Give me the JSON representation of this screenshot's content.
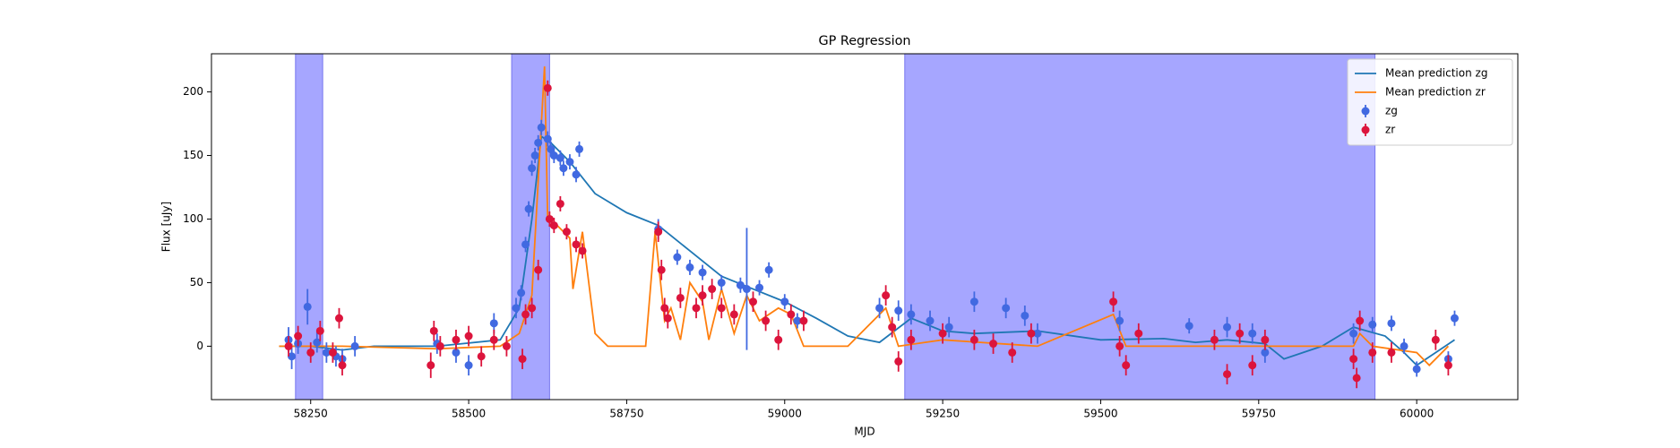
{
  "chart_data": {
    "type": "errorbar_line",
    "title": "GP Regression",
    "xlabel": "MJD",
    "ylabel": "Flux [uJy]",
    "xlim": [
      58093,
      60160
    ],
    "ylim": [
      -42,
      230
    ],
    "xticks": [
      58250,
      58500,
      58750,
      59000,
      59250,
      59500,
      59750,
      60000
    ],
    "yticks": [
      0,
      50,
      100,
      150,
      200
    ],
    "legend": "upper right",
    "span_color": "#a6a6ff",
    "spans": [
      [
        58226,
        58269
      ],
      [
        58568,
        58628
      ],
      [
        59190,
        59934
      ]
    ],
    "series": [
      {
        "name": "Mean prediction zg",
        "kind": "line",
        "color": "#1f77b4",
        "x": [
          58200,
          58250,
          58300,
          58350,
          58450,
          58550,
          58580,
          58600,
          58615,
          58630,
          58660,
          58700,
          58750,
          58800,
          58850,
          58900,
          58950,
          59000,
          59050,
          59100,
          59150,
          59200,
          59250,
          59300,
          59400,
          59500,
          59600,
          59650,
          59700,
          59760,
          59790,
          59850,
          59900,
          59950,
          59980,
          60000,
          60030,
          60060
        ],
        "values": [
          0,
          0,
          -3,
          0,
          0,
          5,
          30,
          100,
          165,
          160,
          145,
          120,
          105,
          95,
          75,
          55,
          45,
          35,
          22,
          8,
          3,
          22,
          12,
          10,
          12,
          5,
          6,
          3,
          5,
          2,
          -10,
          0,
          15,
          8,
          -5,
          -15,
          -5,
          5
        ]
      },
      {
        "name": "Mean prediction zr",
        "kind": "line",
        "color": "#ff7f0e",
        "x": [
          58200,
          58300,
          58450,
          58550,
          58580,
          58600,
          58620,
          58625,
          58640,
          58660,
          58665,
          58680,
          58700,
          58720,
          58780,
          58795,
          58810,
          58820,
          58835,
          58850,
          58870,
          58880,
          58900,
          58920,
          58940,
          58960,
          58990,
          59010,
          59030,
          59100,
          59160,
          59180,
          59250,
          59400,
          59520,
          59540,
          59700,
          59900,
          59910,
          59930,
          60000,
          60020,
          60050
        ],
        "values": [
          0,
          0,
          -2,
          0,
          10,
          40,
          220,
          100,
          95,
          85,
          45,
          90,
          10,
          0,
          0,
          90,
          20,
          30,
          5,
          50,
          35,
          5,
          45,
          10,
          40,
          20,
          30,
          25,
          0,
          0,
          30,
          0,
          5,
          0,
          25,
          0,
          0,
          0,
          10,
          0,
          -5,
          -15,
          0
        ]
      },
      {
        "name": "zg",
        "kind": "errorbar",
        "color": "#4169e1",
        "x": [
          58215,
          58220,
          58230,
          58245,
          58260,
          58275,
          58290,
          58300,
          58320,
          58450,
          58480,
          58500,
          58540,
          58575,
          58583,
          58590,
          58595,
          58600,
          58605,
          58610,
          58615,
          58625,
          58630,
          58635,
          58645,
          58650,
          58660,
          58670,
          58675,
          58800,
          58830,
          58850,
          58870,
          58900,
          58930,
          58940,
          58960,
          58975,
          59000,
          59020,
          59150,
          59180,
          59200,
          59230,
          59260,
          59300,
          59350,
          59380,
          59400,
          59530,
          59640,
          59700,
          59740,
          59760,
          59900,
          59930,
          59960,
          59980,
          60000,
          60050,
          60060
        ],
        "values": [
          5,
          -8,
          2,
          31,
          3,
          -5,
          -8,
          -10,
          0,
          2,
          -5,
          -15,
          18,
          30,
          42,
          80,
          108,
          140,
          150,
          160,
          172,
          163,
          155,
          150,
          148,
          140,
          145,
          135,
          155,
          92,
          70,
          62,
          58,
          50,
          48,
          45,
          46,
          60,
          35,
          20,
          30,
          28,
          25,
          20,
          15,
          35,
          30,
          24,
          10,
          20,
          16,
          15,
          10,
          -5,
          10,
          17,
          18,
          0,
          -18,
          -10,
          22
        ],
        "errors": [
          10,
          10,
          8,
          14,
          8,
          8,
          8,
          8,
          8,
          8,
          8,
          8,
          8,
          8,
          6,
          6,
          6,
          6,
          6,
          6,
          6,
          6,
          6,
          6,
          6,
          6,
          6,
          6,
          6,
          8,
          6,
          6,
          6,
          6,
          6,
          48,
          6,
          6,
          6,
          6,
          8,
          8,
          8,
          8,
          8,
          8,
          8,
          8,
          8,
          8,
          6,
          8,
          8,
          8,
          8,
          6,
          6,
          6,
          6,
          6,
          6
        ]
      },
      {
        "name": "zr",
        "kind": "errorbar",
        "color": "#dc143c",
        "x": [
          58215,
          58230,
          58250,
          58265,
          58285,
          58295,
          58300,
          58440,
          58445,
          58455,
          58480,
          58500,
          58520,
          58540,
          58560,
          58585,
          58590,
          58600,
          58610,
          58625,
          58628,
          58635,
          58645,
          58655,
          58670,
          58680,
          58800,
          58805,
          58810,
          58815,
          58835,
          58860,
          58870,
          58885,
          58900,
          58920,
          58950,
          58970,
          58990,
          59010,
          59030,
          59160,
          59170,
          59180,
          59200,
          59250,
          59300,
          59330,
          59360,
          59390,
          59520,
          59530,
          59540,
          59560,
          59680,
          59700,
          59720,
          59740,
          59760,
          59900,
          59905,
          59910,
          59930,
          59960,
          60030,
          60050
        ],
        "values": [
          0,
          8,
          -5,
          12,
          -5,
          22,
          -15,
          -15,
          12,
          0,
          5,
          8,
          -8,
          5,
          0,
          -10,
          25,
          30,
          60,
          203,
          100,
          95,
          112,
          90,
          80,
          75,
          90,
          60,
          30,
          22,
          38,
          30,
          40,
          45,
          30,
          25,
          35,
          20,
          5,
          25,
          20,
          40,
          15,
          -12,
          5,
          10,
          5,
          2,
          -5,
          10,
          35,
          0,
          -15,
          10,
          5,
          -22,
          10,
          -15,
          5,
          -10,
          -25,
          20,
          -5,
          -5,
          5,
          -15
        ],
        "errors": [
          8,
          8,
          8,
          8,
          8,
          8,
          8,
          10,
          8,
          8,
          8,
          8,
          8,
          8,
          8,
          8,
          8,
          8,
          8,
          6,
          6,
          6,
          6,
          6,
          6,
          6,
          8,
          8,
          8,
          8,
          8,
          8,
          8,
          8,
          8,
          8,
          8,
          8,
          8,
          8,
          8,
          8,
          8,
          8,
          8,
          8,
          8,
          8,
          8,
          8,
          8,
          8,
          8,
          8,
          8,
          8,
          8,
          8,
          8,
          8,
          8,
          8,
          8,
          8,
          8,
          8
        ]
      }
    ]
  }
}
